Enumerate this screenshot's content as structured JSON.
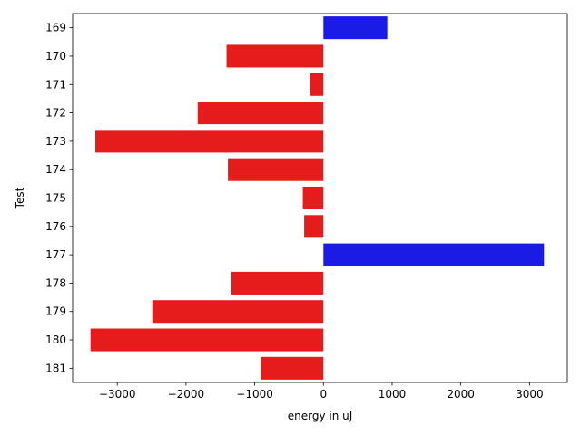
{
  "chart_data": {
    "type": "bar",
    "orientation": "horizontal",
    "title": "",
    "xlabel": "energy in uJ",
    "ylabel": "Test",
    "categories": [
      "169",
      "170",
      "171",
      "172",
      "173",
      "174",
      "175",
      "176",
      "177",
      "178",
      "179",
      "180",
      "181"
    ],
    "values": [
      930,
      -1410,
      -190,
      -1830,
      -3320,
      -1390,
      -300,
      -280,
      3210,
      -1340,
      -2490,
      -3390,
      -910
    ],
    "xlim": [
      -3650,
      3550
    ],
    "xticks": [
      -3000,
      -2000,
      -1000,
      0,
      1000,
      2000,
      3000
    ],
    "xtick_labels": [
      "−3000",
      "−2000",
      "−1000",
      "0",
      "1000",
      "2000",
      "3000"
    ],
    "grid": false,
    "legend": "none",
    "colors": {
      "positive": "#1b1be6",
      "negative": "#e61b1b"
    }
  }
}
